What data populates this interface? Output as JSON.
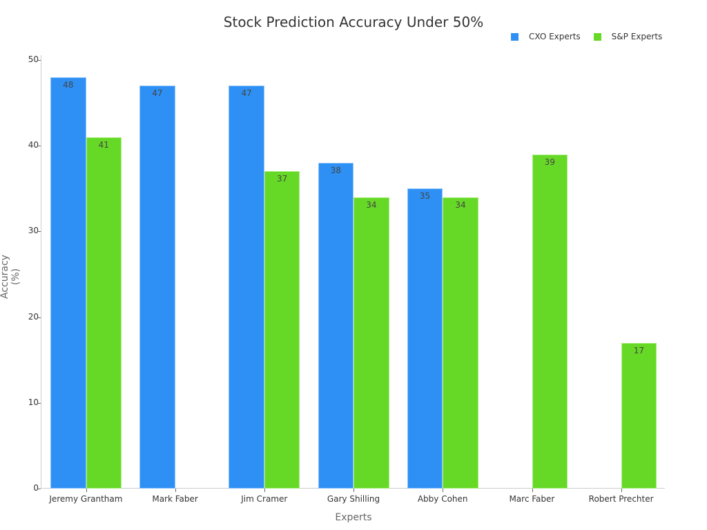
{
  "chart_data": {
    "type": "bar",
    "title": "Stock Prediction Accuracy Under 50%",
    "xlabel": "Experts",
    "ylabel": "Accuracy (%)",
    "ylim": [
      0,
      50
    ],
    "yticks": [
      0,
      10,
      20,
      30,
      40,
      50
    ],
    "grid": false,
    "legend_position": "top-right",
    "categories": [
      "Jeremy Grantham",
      "Mark Faber",
      "Jim Cramer",
      "Gary Shilling",
      "Abby Cohen",
      "Marc Faber",
      "Robert Prechter"
    ],
    "series": [
      {
        "name": "CXO Experts",
        "color": "#2e90f5",
        "values": [
          48,
          47,
          47,
          38,
          35,
          null,
          null
        ]
      },
      {
        "name": "S&P Experts",
        "color": "#66d926",
        "values": [
          41,
          null,
          37,
          34,
          34,
          39,
          17
        ]
      }
    ]
  }
}
